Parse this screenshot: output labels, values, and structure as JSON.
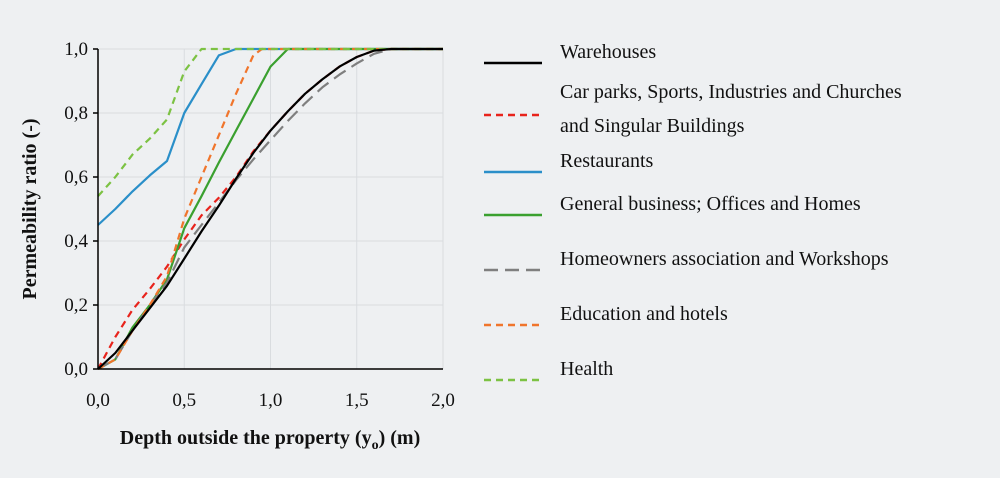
{
  "chart_data": {
    "type": "line",
    "xlabel": "Depth outside the property (y",
    "xlabel_sub": "o",
    "xlabel_unit": ") (m)",
    "ylabel": "Permeability ratio (-)",
    "xlim": [
      0,
      2
    ],
    "ylim": [
      0,
      1
    ],
    "x_ticks": [
      "0,0",
      "0,5",
      "1,0",
      "1,5",
      "2,0"
    ],
    "y_ticks": [
      "0,0",
      "0,2",
      "0,4",
      "0,6",
      "0,8",
      "1,0"
    ],
    "grid": true,
    "legend_position": "right",
    "series": [
      {
        "name": "Warehouses",
        "name_line2": "",
        "color": "#000000",
        "dash": "solid",
        "points": [
          [
            0,
            0
          ],
          [
            0.1,
            0.05
          ],
          [
            0.2,
            0.12
          ],
          [
            0.3,
            0.19
          ],
          [
            0.4,
            0.26
          ],
          [
            0.5,
            0.345
          ],
          [
            0.6,
            0.43
          ],
          [
            0.7,
            0.51
          ],
          [
            0.8,
            0.595
          ],
          [
            0.9,
            0.675
          ],
          [
            1.0,
            0.745
          ],
          [
            1.1,
            0.805
          ],
          [
            1.2,
            0.86
          ],
          [
            1.3,
            0.905
          ],
          [
            1.4,
            0.945
          ],
          [
            1.5,
            0.975
          ],
          [
            1.6,
            0.995
          ],
          [
            1.7,
            1.0
          ],
          [
            2.0,
            1.0
          ]
        ]
      },
      {
        "name": "Car parks, Sports, Industries and Churches",
        "name_line2": "and Singular Buildings",
        "color": "#e8231c",
        "dash": "short",
        "points": [
          [
            0,
            0
          ],
          [
            0.1,
            0.1
          ],
          [
            0.2,
            0.185
          ],
          [
            0.3,
            0.25
          ],
          [
            0.4,
            0.32
          ],
          [
            0.5,
            0.405
          ],
          [
            0.6,
            0.48
          ],
          [
            0.7,
            0.535
          ],
          [
            0.8,
            0.6
          ],
          [
            0.9,
            0.68
          ],
          [
            1.0,
            0.745
          ],
          [
            1.1,
            0.805
          ],
          [
            1.2,
            0.86
          ],
          [
            1.3,
            0.905
          ],
          [
            1.4,
            0.945
          ],
          [
            1.5,
            0.975
          ],
          [
            1.6,
            0.995
          ],
          [
            1.7,
            1.0
          ],
          [
            2.0,
            1.0
          ]
        ]
      },
      {
        "name": "Restaurants",
        "name_line2": "",
        "color": "#2a8fc9",
        "dash": "solid",
        "points": [
          [
            0,
            0.45
          ],
          [
            0.1,
            0.5
          ],
          [
            0.2,
            0.555
          ],
          [
            0.3,
            0.605
          ],
          [
            0.4,
            0.65
          ],
          [
            0.5,
            0.8
          ],
          [
            0.6,
            0.89
          ],
          [
            0.7,
            0.98
          ],
          [
            0.8,
            1.0
          ],
          [
            2.0,
            1.0
          ]
        ]
      },
      {
        "name": "General business; Offices and Homes",
        "name_line2": "",
        "color": "#3aa02f",
        "dash": "solid",
        "points": [
          [
            0,
            0
          ],
          [
            0.1,
            0.03
          ],
          [
            0.2,
            0.13
          ],
          [
            0.3,
            0.2
          ],
          [
            0.4,
            0.28
          ],
          [
            0.5,
            0.44
          ],
          [
            0.6,
            0.54
          ],
          [
            0.7,
            0.645
          ],
          [
            0.8,
            0.745
          ],
          [
            0.9,
            0.845
          ],
          [
            1.0,
            0.945
          ],
          [
            1.1,
            1.0
          ],
          [
            2.0,
            1.0
          ]
        ]
      },
      {
        "name": "Homeowners association and Workshops",
        "name_line2": "",
        "color": "#7f7f7f",
        "dash": "long",
        "points": [
          [
            0,
            0
          ],
          [
            0.1,
            0.03
          ],
          [
            0.2,
            0.12
          ],
          [
            0.3,
            0.2
          ],
          [
            0.4,
            0.27
          ],
          [
            0.5,
            0.38
          ],
          [
            0.6,
            0.45
          ],
          [
            0.7,
            0.52
          ],
          [
            0.8,
            0.59
          ],
          [
            0.9,
            0.655
          ],
          [
            1.0,
            0.715
          ],
          [
            1.1,
            0.775
          ],
          [
            1.2,
            0.83
          ],
          [
            1.3,
            0.88
          ],
          [
            1.4,
            0.92
          ],
          [
            1.5,
            0.955
          ],
          [
            1.6,
            0.985
          ],
          [
            1.7,
            1.0
          ],
          [
            2.0,
            1.0
          ]
        ]
      },
      {
        "name": "Education and hotels",
        "name_line2": "",
        "color": "#f0752c",
        "dash": "short",
        "points": [
          [
            0,
            0
          ],
          [
            0.1,
            0.03
          ],
          [
            0.2,
            0.12
          ],
          [
            0.3,
            0.2
          ],
          [
            0.4,
            0.29
          ],
          [
            0.5,
            0.47
          ],
          [
            0.6,
            0.6
          ],
          [
            0.7,
            0.73
          ],
          [
            0.8,
            0.86
          ],
          [
            0.9,
            0.98
          ],
          [
            0.95,
            1.0
          ],
          [
            2.0,
            1.0
          ]
        ]
      },
      {
        "name": "Health",
        "name_line2": "",
        "color": "#7cc243",
        "dash": "short",
        "points": [
          [
            0,
            0.54
          ],
          [
            0.1,
            0.6
          ],
          [
            0.2,
            0.67
          ],
          [
            0.3,
            0.72
          ],
          [
            0.4,
            0.78
          ],
          [
            0.5,
            0.93
          ],
          [
            0.6,
            1.0
          ],
          [
            2.0,
            1.0
          ]
        ]
      }
    ]
  }
}
